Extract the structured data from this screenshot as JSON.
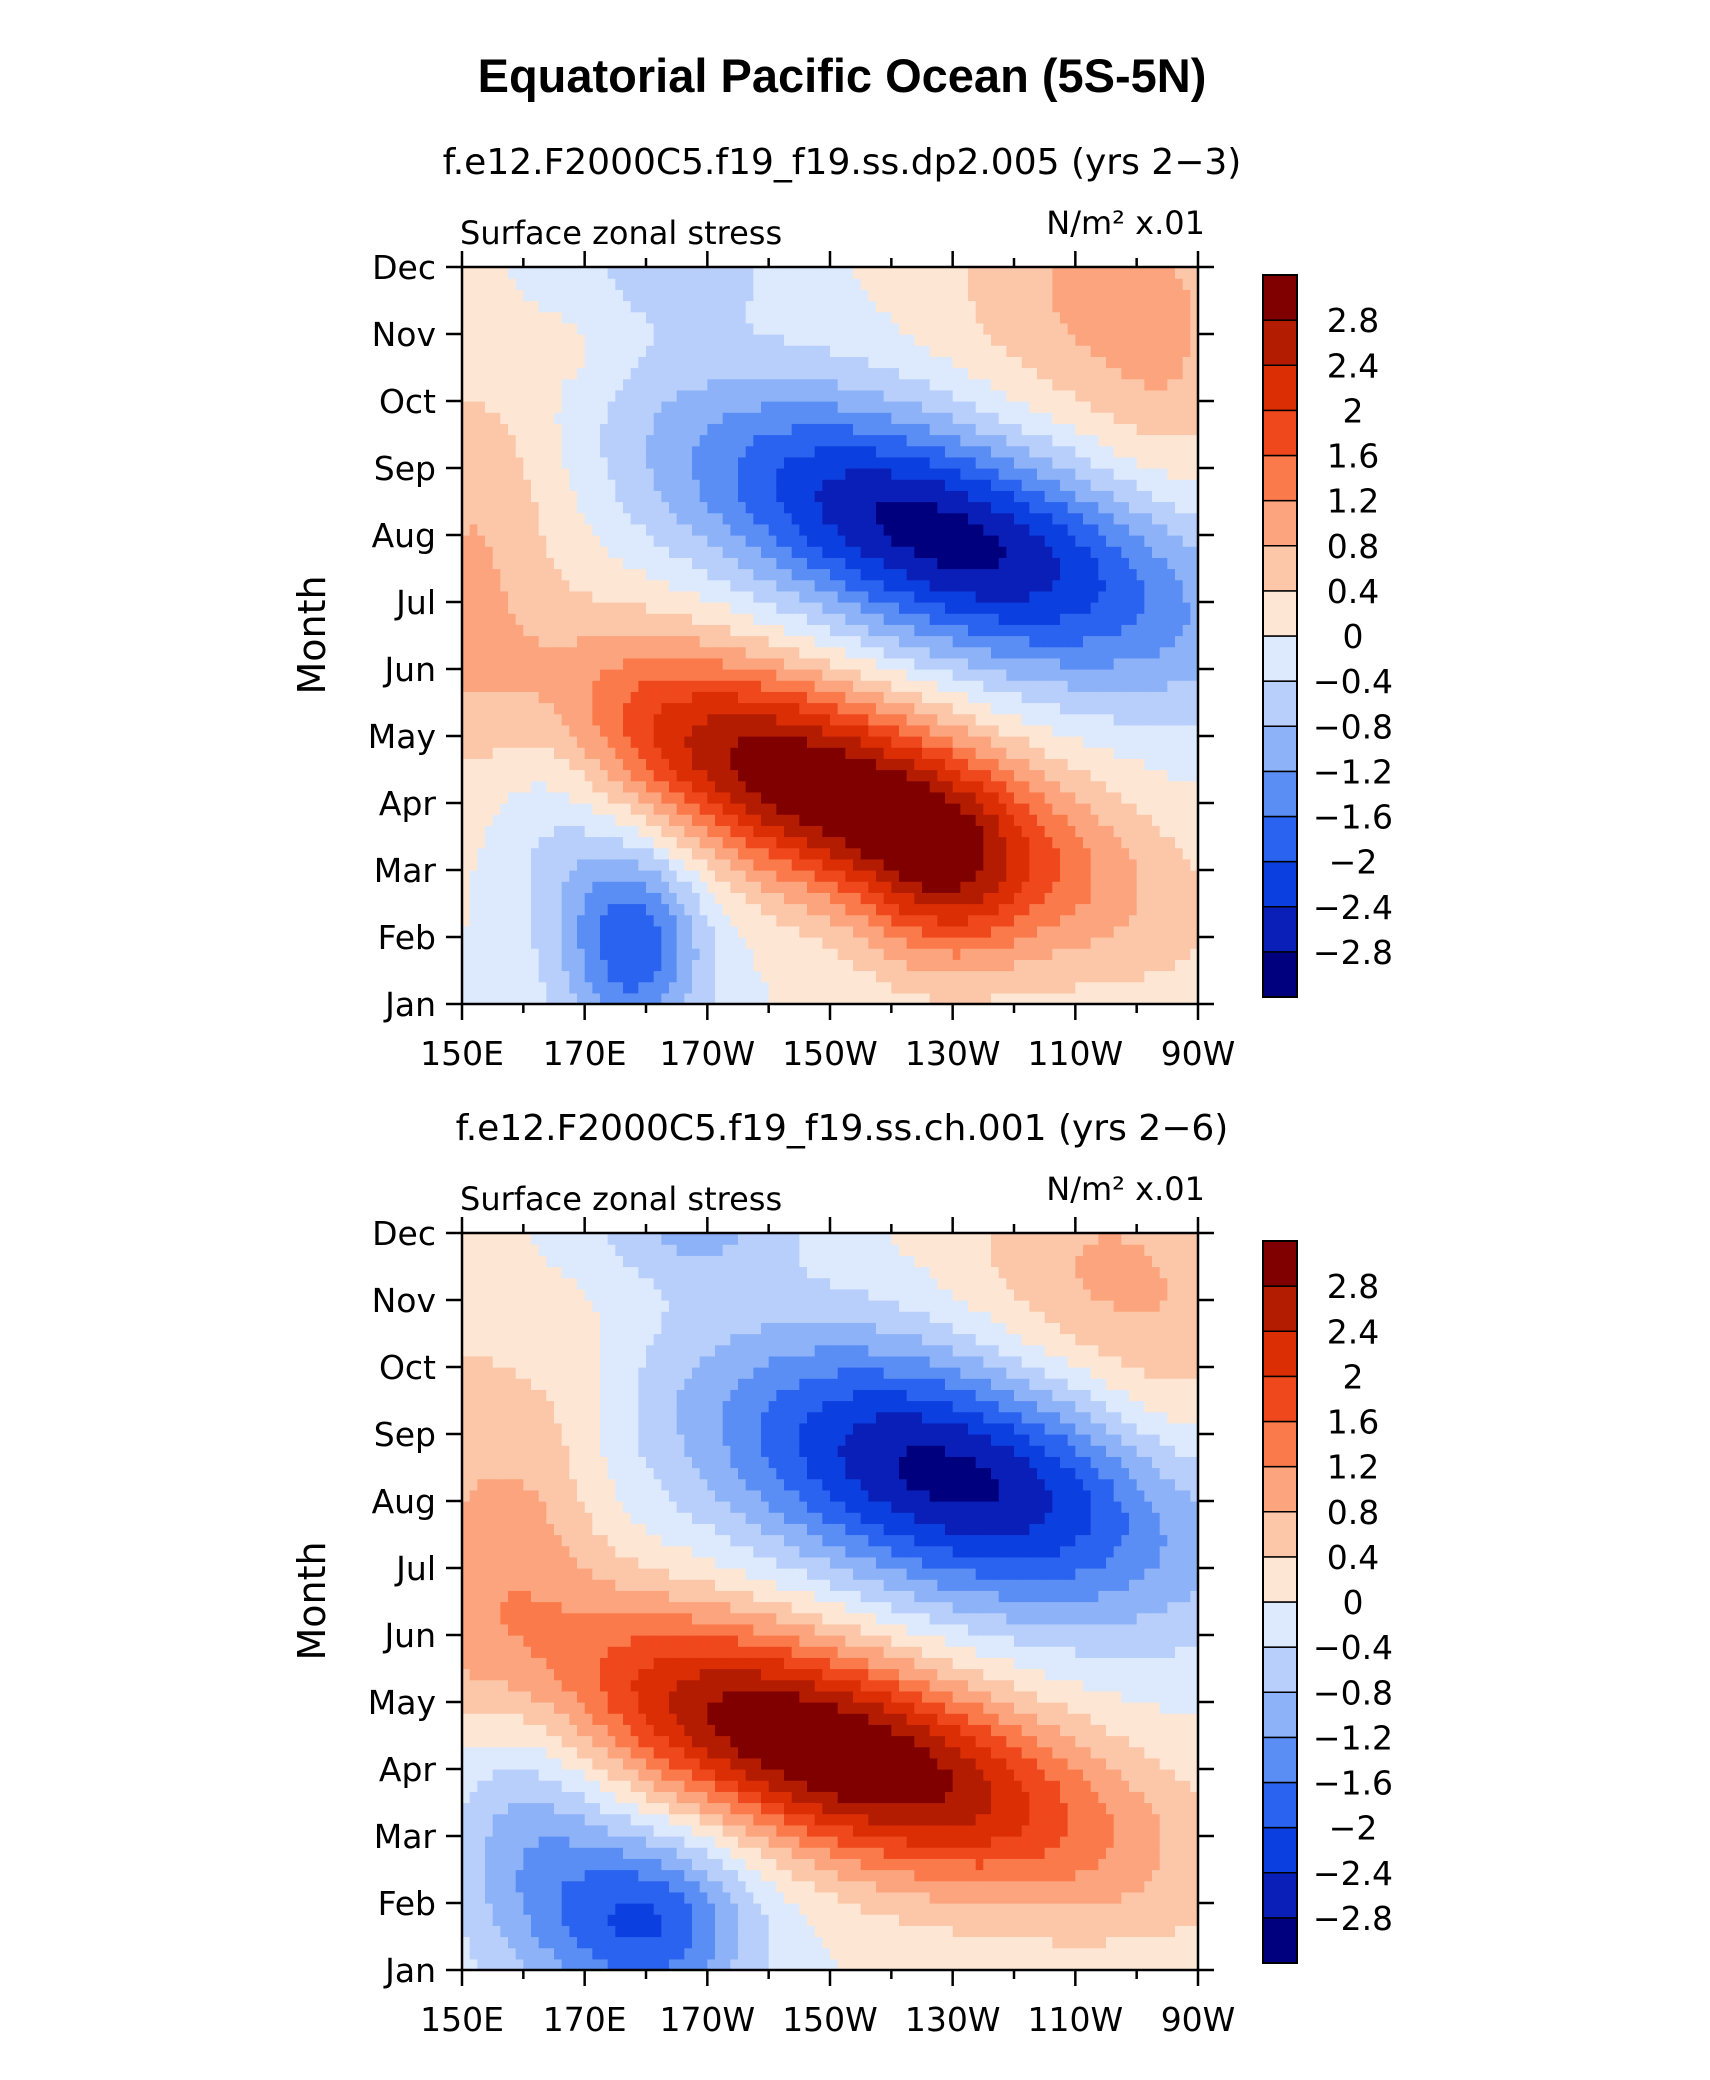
{
  "figure": {
    "title": "Equatorial Pacific Ocean (5S-5N)"
  },
  "chart_data": [
    {
      "type": "heatmap",
      "title": "f.e12.F2000C5.f19_f19.ss.dp2.005 (yrs 2−3)",
      "left_label": "Surface zonal stress",
      "right_label": "N/m² x.01",
      "ylabel": "Month",
      "xlabel": "",
      "x_ticks": [
        "150E",
        "170E",
        "170W",
        "150W",
        "130W",
        "110W",
        "90W"
      ],
      "y_ticks": [
        "Jan",
        "Feb",
        "Mar",
        "Apr",
        "May",
        "Jun",
        "Jul",
        "Aug",
        "Sep",
        "Oct",
        "Nov",
        "Dec"
      ],
      "lon_range": [
        150,
        270
      ],
      "months": [
        "Jan",
        "Feb",
        "Mar",
        "Apr",
        "May",
        "Jun",
        "Jul",
        "Aug",
        "Sep",
        "Oct",
        "Nov",
        "Dec"
      ],
      "color_levels": [
        -2.8,
        -2.4,
        -2,
        -1.6,
        -1.2,
        -0.8,
        -0.4,
        0,
        0.4,
        0.8,
        1.2,
        1.6,
        2,
        2.4,
        2.8
      ],
      "colorbar_labels": [
        "2.8",
        "2.4",
        "2",
        "1.6",
        "1.2",
        "0.8",
        "0.4",
        "0",
        "−0.4",
        "−0.8",
        "−1.2",
        "−1.6",
        "−2",
        "−2.4",
        "−2.8"
      ],
      "features": [
        {
          "lon": 150,
          "month": 6.5,
          "value": 0.5,
          "slon": 8,
          "smon": 2.5
        },
        {
          "lon": 158,
          "month": 7.8,
          "value": 0.4,
          "slon": 10,
          "smon": 1.3
        },
        {
          "lon": 170,
          "month": 9.8,
          "value": 0.25,
          "slon": 6,
          "smon": 0.7
        },
        {
          "lon": 165,
          "month": 3.0,
          "value": -0.5,
          "slon": 8,
          "smon": 1.5
        },
        {
          "lon": 178,
          "month": 0.9,
          "value": -1.9,
          "slon": 8,
          "smon": 1.1
        },
        {
          "lon": 210,
          "month": 3.2,
          "value": 3.3,
          "slon": 30,
          "smon": 1.1,
          "dmdl": -0.03
        },
        {
          "lon": 228,
          "month": 1.7,
          "value": 0.9,
          "slon": 9,
          "smon": 1.0
        },
        {
          "lon": 228,
          "month": 7.0,
          "value": -3.0,
          "slon": 30,
          "smon": 1.2,
          "dmdl": -0.027
        },
        {
          "lon": 185,
          "month": 11.0,
          "value": -0.6,
          "slon": 12,
          "smon": 0.6
        },
        {
          "lon": 255,
          "month": 10.6,
          "value": 0.9,
          "slon": 18,
          "smon": 1.6
        },
        {
          "lon": 265,
          "month": 9.0,
          "value": 0.3,
          "slon": 8,
          "smon": 1.2
        }
      ]
    },
    {
      "type": "heatmap",
      "title": "f.e12.F2000C5.f19_f19.ss.ch.001 (yrs 2−6)",
      "left_label": "Surface zonal stress",
      "right_label": "N/m² x.01",
      "ylabel": "Month",
      "xlabel": "",
      "x_ticks": [
        "150E",
        "170E",
        "170W",
        "150W",
        "130W",
        "110W",
        "90W"
      ],
      "y_ticks": [
        "Jan",
        "Feb",
        "Mar",
        "Apr",
        "May",
        "Jun",
        "Jul",
        "Aug",
        "Sep",
        "Oct",
        "Nov",
        "Dec"
      ],
      "lon_range": [
        150,
        270
      ],
      "months": [
        "Jan",
        "Feb",
        "Mar",
        "Apr",
        "May",
        "Jun",
        "Jul",
        "Aug",
        "Sep",
        "Oct",
        "Nov",
        "Dec"
      ],
      "color_levels": [
        -2.8,
        -2.4,
        -2,
        -1.6,
        -1.2,
        -0.8,
        -0.4,
        0,
        0.4,
        0.8,
        1.2,
        1.6,
        2,
        2.4,
        2.8
      ],
      "colorbar_labels": [
        "2.8",
        "2.4",
        "2",
        "1.6",
        "1.2",
        "0.8",
        "0.4",
        "0",
        "−0.4",
        "−0.8",
        "−1.2",
        "−1.6",
        "−2",
        "−2.4",
        "−2.8"
      ],
      "features": [
        {
          "lon": 150,
          "month": 7.0,
          "value": 0.5,
          "slon": 8,
          "smon": 3.0
        },
        {
          "lon": 162,
          "month": 6.8,
          "value": 0.6,
          "slon": 8,
          "smon": 1.2
        },
        {
          "lon": 168,
          "month": 9.0,
          "value": 0.35,
          "slon": 8,
          "smon": 1.0
        },
        {
          "lon": 160,
          "month": 2.0,
          "value": -1.0,
          "slon": 10,
          "smon": 1.4
        },
        {
          "lon": 180,
          "month": 0.7,
          "value": -2.0,
          "slon": 12,
          "smon": 1.0
        },
        {
          "lon": 210,
          "month": 3.3,
          "value": 3.4,
          "slon": 32,
          "smon": 1.1,
          "dmdl": -0.027
        },
        {
          "lon": 230,
          "month": 7.4,
          "value": -3.0,
          "slon": 28,
          "smon": 1.3,
          "dmdl": -0.02
        },
        {
          "lon": 188,
          "month": 11.2,
          "value": -0.9,
          "slon": 12,
          "smon": 0.6
        },
        {
          "lon": 255,
          "month": 10.2,
          "value": 0.9,
          "slon": 18,
          "smon": 1.6
        },
        {
          "lon": 265,
          "month": 8.0,
          "value": 0.3,
          "slon": 8,
          "smon": 1.2
        }
      ]
    }
  ],
  "colors": {
    "palette": [
      "#00007f",
      "#0a1fb8",
      "#0c3fe0",
      "#2a63f0",
      "#5b8ef5",
      "#8db2f8",
      "#b7cffa",
      "#dde9fd",
      "#fde7d4",
      "#fcc6a9",
      "#fca47d",
      "#fb7a4b",
      "#f0481d",
      "#dc2e05",
      "#b41c02",
      "#800000"
    ]
  }
}
